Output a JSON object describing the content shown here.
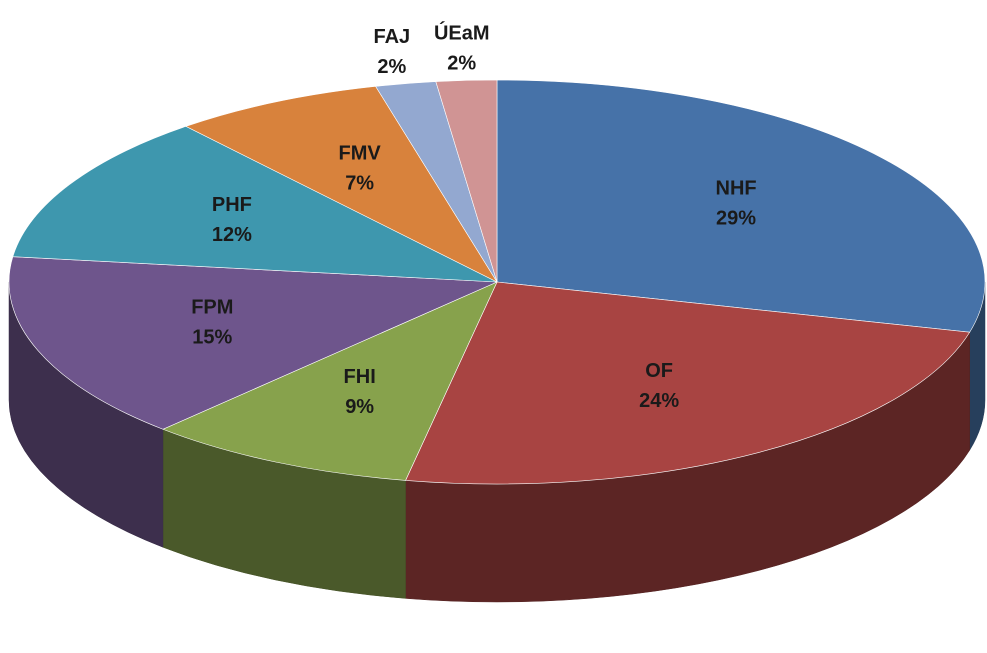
{
  "chart_data": {
    "type": "pie3d",
    "categories": [
      "NHF",
      "OF",
      "FHI",
      "FPM",
      "PHF",
      "FMV",
      "FAJ",
      "ÚEaM"
    ],
    "values": [
      29,
      24,
      9,
      15,
      12,
      7,
      2,
      2
    ],
    "value_labels": [
      "29%",
      "24%",
      "9%",
      "15%",
      "12%",
      "7%",
      "2%",
      "2%"
    ],
    "colors": [
      "#4672a8",
      "#a84442",
      "#87a24c",
      "#6e558c",
      "#3e97ae",
      "#d8823c",
      "#93a8d0",
      "#d09494"
    ]
  }
}
